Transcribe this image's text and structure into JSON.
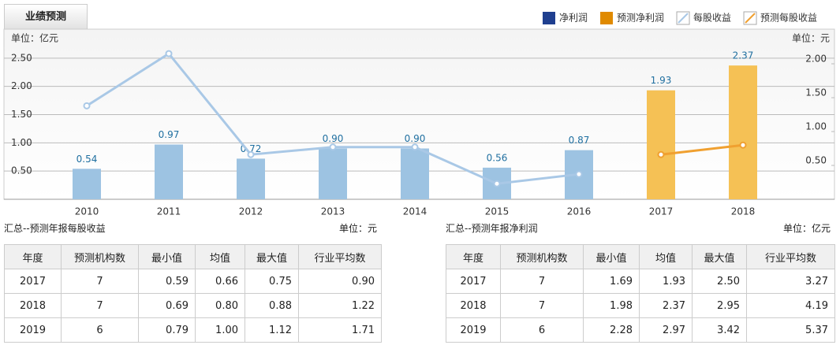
{
  "tab": "业绩预测",
  "chart_data": {
    "type": "bar",
    "y_label": "单位：亿元",
    "y2_label": "单位：元",
    "categories": [
      "2010",
      "2011",
      "2012",
      "2013",
      "2014",
      "2015",
      "2016",
      "2017",
      "2018"
    ],
    "ylim": [
      0,
      3
    ],
    "yticks": [
      {
        "value": 0.5,
        "label": "0.50"
      },
      {
        "value": 1,
        "label": "1.00"
      },
      {
        "value": 1.5,
        "label": "1.50"
      },
      {
        "value": 2,
        "label": "2.00"
      },
      {
        "value": 2.5,
        "label": "2.50"
      }
    ],
    "y2lim": [
      0,
      2.5
    ],
    "y2ticks": [
      {
        "value": 0.5,
        "label": "0.50"
      },
      {
        "value": 1,
        "label": "1.00"
      },
      {
        "value": 1.5,
        "label": "1.50"
      },
      {
        "value": 2,
        "label": "2.00"
      }
    ],
    "grid": true,
    "legend": "top-right",
    "series": [
      {
        "name": "净利润",
        "type": "bar",
        "color": "#9dc3e2",
        "legend_color": "#1f3f8f",
        "values": [
          0.54,
          0.97,
          0.72,
          0.9,
          0.9,
          0.56,
          0.87,
          null,
          null
        ],
        "value_labels": [
          "0.54",
          "0.97",
          "0.72",
          "0.90",
          "0.90",
          "0.56",
          "0.87",
          null,
          null
        ]
      },
      {
        "name": "预测净利润",
        "type": "bar",
        "color": "#f5c155",
        "legend_color": "#e08a00",
        "values": [
          null,
          null,
          null,
          null,
          null,
          null,
          null,
          1.93,
          2.37
        ],
        "value_labels": [
          null,
          null,
          null,
          null,
          null,
          null,
          null,
          "1.93",
          "2.37"
        ]
      },
      {
        "name": "每股收益",
        "type": "line",
        "axis": "y2",
        "color": "#a9c8e6",
        "values": [
          1.38,
          2.15,
          0.66,
          0.77,
          0.77,
          0.23,
          0.37,
          null,
          null
        ]
      },
      {
        "name": "预测每股收益",
        "type": "line",
        "axis": "y2",
        "color": "#f0a030",
        "values": [
          null,
          null,
          null,
          null,
          null,
          null,
          null,
          0.66,
          0.8
        ]
      }
    ]
  },
  "eps_table": {
    "title": "汇总--预测年报每股收益",
    "unit": "单位：元",
    "columns": [
      "年度",
      "预测机构数",
      "最小值",
      "均值",
      "最大值",
      "行业平均数"
    ],
    "rows": [
      [
        "2017",
        "7",
        "0.59",
        "0.66",
        "0.75",
        "0.90"
      ],
      [
        "2018",
        "7",
        "0.69",
        "0.80",
        "0.88",
        "1.22"
      ],
      [
        "2019",
        "6",
        "0.79",
        "1.00",
        "1.12",
        "1.71"
      ]
    ]
  },
  "profit_table": {
    "title": "汇总--预测年报净利润",
    "unit": "单位：亿元",
    "columns": [
      "年度",
      "预测机构数",
      "最小值",
      "均值",
      "最大值",
      "行业平均数"
    ],
    "rows": [
      [
        "2017",
        "7",
        "1.69",
        "1.93",
        "2.50",
        "3.27"
      ],
      [
        "2018",
        "7",
        "1.98",
        "2.37",
        "2.95",
        "4.19"
      ],
      [
        "2019",
        "6",
        "2.28",
        "2.97",
        "3.42",
        "5.37"
      ]
    ]
  }
}
